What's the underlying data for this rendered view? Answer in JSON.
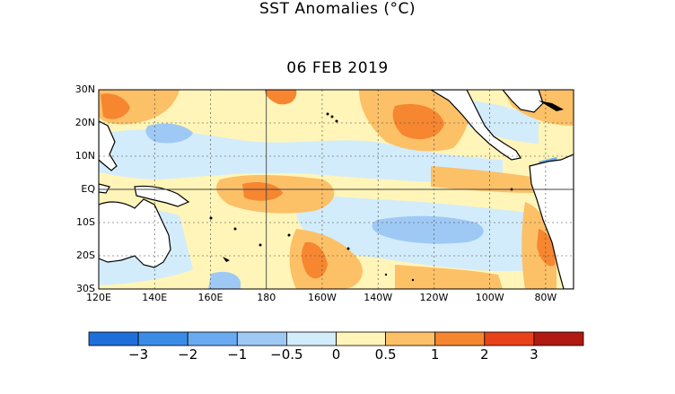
{
  "title": "SST Anomalies (°C)",
  "subtitle": "06 FEB 2019",
  "map": {
    "lat_labels": [
      "30N",
      "20N",
      "10N",
      "EQ",
      "10S",
      "20S",
      "30S"
    ],
    "lat_values": [
      30,
      20,
      10,
      0,
      -10,
      -20,
      -30
    ],
    "lon_labels": [
      "120E",
      "140E",
      "160E",
      "180",
      "160W",
      "140W",
      "120W",
      "100W",
      "80W"
    ],
    "lon_values": [
      120,
      140,
      160,
      180,
      200,
      220,
      240,
      260,
      280
    ],
    "lon_range": [
      120,
      290
    ],
    "lat_range": [
      -30,
      30
    ]
  },
  "colorbar": {
    "colors": [
      "#1e6fd9",
      "#3b8ce6",
      "#6aaaf0",
      "#9fc9f5",
      "#d3ecfb",
      "#fff5b8",
      "#fcc067",
      "#f6862f",
      "#e8421a",
      "#b01a12"
    ],
    "labels": [
      "−3",
      "−2",
      "−1",
      "−0.5",
      "0",
      "0.5",
      "1",
      "2",
      "3"
    ]
  }
}
